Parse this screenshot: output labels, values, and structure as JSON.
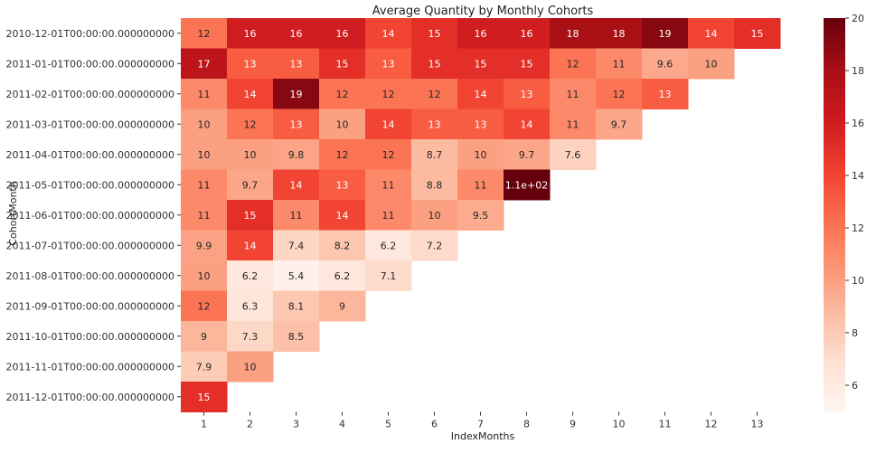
{
  "chart_data": {
    "type": "heatmap",
    "title": "Average Quantity by Monthly Cohorts",
    "xlabel": "IndexMonths",
    "ylabel": "CohortMonth",
    "x": [
      1,
      2,
      3,
      4,
      5,
      6,
      7,
      8,
      9,
      10,
      11,
      12,
      13
    ],
    "y": [
      "2010-12-01T00:00:00.000000000",
      "2011-01-01T00:00:00.000000000",
      "2011-02-01T00:00:00.000000000",
      "2011-03-01T00:00:00.000000000",
      "2011-04-01T00:00:00.000000000",
      "2011-05-01T00:00:00.000000000",
      "2011-06-01T00:00:00.000000000",
      "2011-07-01T00:00:00.000000000",
      "2011-08-01T00:00:00.000000000",
      "2011-09-01T00:00:00.000000000",
      "2011-10-01T00:00:00.000000000",
      "2011-11-01T00:00:00.000000000",
      "2011-12-01T00:00:00.000000000"
    ],
    "values": [
      [
        12,
        16,
        16,
        16,
        14,
        15,
        16,
        16,
        18,
        18,
        19,
        14,
        15
      ],
      [
        17,
        13,
        13,
        15,
        13,
        15,
        15,
        15,
        12,
        11,
        9.6,
        10
      ],
      [
        11,
        14,
        19,
        12,
        12,
        12,
        14,
        13,
        11,
        12,
        13
      ],
      [
        10,
        12,
        13,
        10,
        14,
        13,
        13,
        14,
        11,
        9.7
      ],
      [
        10,
        10,
        9.8,
        12,
        12,
        8.7,
        10,
        9.7,
        7.6
      ],
      [
        11,
        9.7,
        14,
        13,
        11,
        8.8,
        11,
        110
      ],
      [
        11,
        15,
        11,
        14,
        11,
        10,
        9.5
      ],
      [
        9.9,
        14,
        7.4,
        8.2,
        6.2,
        7.2
      ],
      [
        10,
        6.2,
        5.4,
        6.2,
        7.1
      ],
      [
        12,
        6.3,
        8.1,
        9
      ],
      [
        9,
        7.3,
        8.5
      ],
      [
        7.9,
        10
      ],
      [
        15
      ]
    ],
    "annotations": [
      [
        "12",
        "16",
        "16",
        "16",
        "14",
        "15",
        "16",
        "16",
        "18",
        "18",
        "19",
        "14",
        "15"
      ],
      [
        "17",
        "13",
        "13",
        "15",
        "13",
        "15",
        "15",
        "15",
        "12",
        "11",
        "9.6",
        "10"
      ],
      [
        "11",
        "14",
        "19",
        "12",
        "12",
        "12",
        "14",
        "13",
        "11",
        "12",
        "13"
      ],
      [
        "10",
        "12",
        "13",
        "10",
        "14",
        "13",
        "13",
        "14",
        "11",
        "9.7"
      ],
      [
        "10",
        "10",
        "9.8",
        "12",
        "12",
        "8.7",
        "10",
        "9.7",
        "7.6"
      ],
      [
        "11",
        "9.7",
        "14",
        "13",
        "11",
        "8.8",
        "11",
        "1.1e+02"
      ],
      [
        "11",
        "15",
        "11",
        "14",
        "11",
        "10",
        "9.5"
      ],
      [
        "9.9",
        "14",
        "7.4",
        "8.2",
        "6.2",
        "7.2"
      ],
      [
        "10",
        "6.2",
        "5.4",
        "6.2",
        "7.1"
      ],
      [
        "12",
        "6.3",
        "8.1",
        "9"
      ],
      [
        "9",
        "7.3",
        "8.5"
      ],
      [
        "7.9",
        "10"
      ],
      [
        "15"
      ]
    ],
    "colorscale": "Reds",
    "color_range": [
      5,
      20
    ],
    "colorbar_ticks": [
      6,
      8,
      10,
      12,
      14,
      16,
      18,
      20
    ]
  }
}
